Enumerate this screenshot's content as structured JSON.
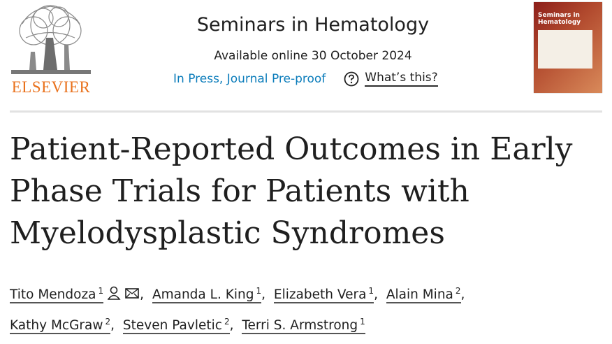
{
  "header": {
    "publisher": "ELSEVIER",
    "journal": "Seminars in Hematology",
    "available": "Available online 30 October 2024",
    "status": "In Press, Journal Pre-proof",
    "help": "What’s this?",
    "cover_title": "Seminars in Hematology"
  },
  "article": {
    "title": "Patient-Reported Outcomes in Early Phase Trials for Patients with Myelodysplastic Syndromes"
  },
  "authors": [
    {
      "name": "Tito Mendoza",
      "affiliation": 1
    },
    {
      "name": "Amanda L. King",
      "affiliation": 1
    },
    {
      "name": "Elizabeth Vera",
      "affiliation": 1
    },
    {
      "name": "Alain Mina",
      "affiliation": 2
    },
    {
      "name": "Kathy McGraw",
      "affiliation": 2
    },
    {
      "name": "Steven Pavletic",
      "affiliation": 2
    },
    {
      "name": "Terri S. Armstrong",
      "affiliation": 1
    }
  ]
}
